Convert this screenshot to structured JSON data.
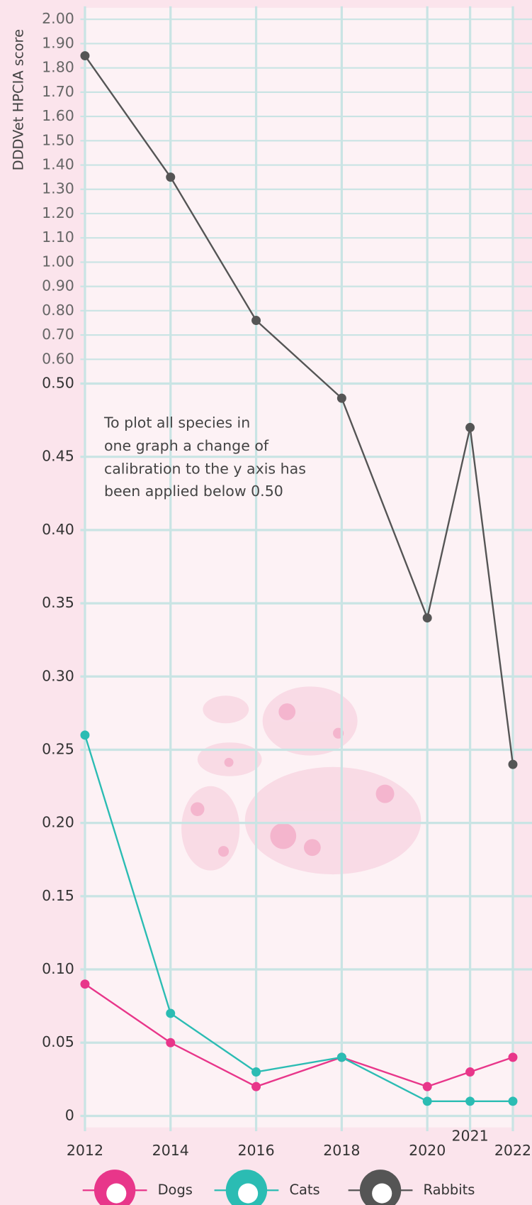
{
  "chart_data": {
    "type": "line",
    "y_axis_label": "DDDVet HPCIA score",
    "annotation": [
      "To plot all species in",
      "one graph a change of",
      "calibration to the y axis has",
      "been applied below 0.50"
    ],
    "x": [
      2012,
      2014,
      2016,
      2018,
      2020,
      2021,
      2022
    ],
    "xlim": [
      2012,
      2022
    ],
    "xticks": [
      2012,
      2014,
      2016,
      2018,
      2020,
      2021,
      2022
    ],
    "y_segments": [
      {
        "ylim": [
          0,
          0.5
        ],
        "yticks": [
          0,
          {
            "value": 0.05,
            "label": "0.05"
          },
          {
            "value": 0.1,
            "label": "0.10"
          },
          {
            "value": 0.15,
            "label": "0.15"
          },
          {
            "value": 0.2,
            "label": "0.20"
          },
          {
            "value": 0.25,
            "label": "0.25"
          },
          {
            "value": 0.3,
            "label": "0.30"
          },
          {
            "value": 0.35,
            "label": "0.35"
          },
          {
            "value": 0.4,
            "label": "0.40"
          },
          {
            "value": 0.45,
            "label": "0.45"
          },
          {
            "value": 0.5,
            "label": "0.50"
          }
        ]
      },
      {
        "ylim": [
          0.5,
          2
        ],
        "yticks": [
          {
            "value": 0.6,
            "label": "0.60"
          },
          {
            "value": 0.7,
            "label": "0.70"
          },
          {
            "value": 0.8,
            "label": "0.80"
          },
          {
            "value": 0.9,
            "label": "0.90"
          },
          {
            "value": 1,
            "label": "1.00"
          },
          {
            "value": 1.1,
            "label": "1.10"
          },
          {
            "value": 1.2,
            "label": "1.20"
          },
          {
            "value": 1.3,
            "label": "1.30"
          },
          {
            "value": 1.4,
            "label": "1.40"
          },
          {
            "value": 1.5,
            "label": "1.50"
          },
          {
            "value": 1.6,
            "label": "1.60"
          },
          {
            "value": 1.7,
            "label": "1.70"
          },
          {
            "value": 1.8,
            "label": "1.80"
          },
          {
            "value": 1.9,
            "label": "1.90"
          },
          {
            "value": 2,
            "label": "2.00"
          }
        ]
      }
    ],
    "grid": true,
    "series": [
      {
        "name": "Dogs",
        "color": "#e8368a",
        "values": [
          0.09,
          0.05,
          0.02,
          0.04,
          0.02,
          0.03,
          0.04
        ]
      },
      {
        "name": "Cats",
        "color": "#2bbcb3",
        "values": [
          0.26,
          0.07,
          0.03,
          0.04,
          0.01,
          0.01,
          0.01
        ]
      },
      {
        "name": "Rabbits",
        "color": "#555555",
        "values": [
          1.85,
          1.35,
          0.76,
          0.49,
          0.34,
          0.47,
          0.24
        ]
      }
    ]
  }
}
